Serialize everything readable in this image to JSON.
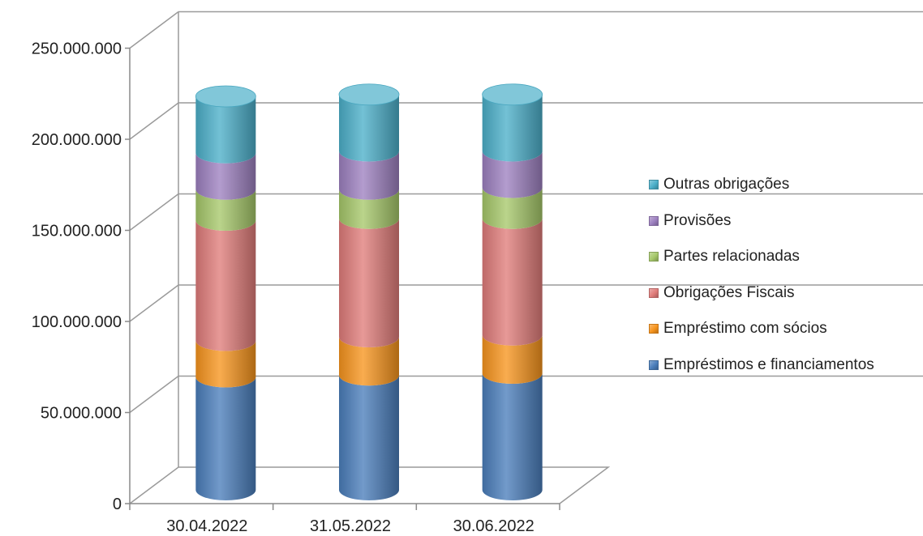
{
  "chart_data": {
    "type": "bar",
    "stacked": true,
    "style": "3d-cylinder",
    "title": "",
    "xlabel": "",
    "ylabel": "",
    "ylim": [
      0,
      250000000
    ],
    "y_ticks": [
      "0",
      "50.000.000",
      "100.000.000",
      "150.000.000",
      "200.000.000",
      "250.000.000"
    ],
    "categories": [
      "30.04.2022",
      "31.05.2022",
      "30.06.2022"
    ],
    "grid": true,
    "legend_position": "right",
    "series": [
      {
        "name": "Empréstimos e financiamentos",
        "color": "#4a7ebb",
        "values": [
          62000000,
          63000000,
          64000000
        ]
      },
      {
        "name": "Empréstimo com sócios",
        "color": "#f7941d",
        "values": [
          20000000,
          21000000,
          21000000
        ]
      },
      {
        "name": "Obrigações Fiscais",
        "color": "#e07c7a",
        "values": [
          66000000,
          65000000,
          64000000
        ]
      },
      {
        "name": "Partes relacionadas",
        "color": "#a6c86a",
        "values": [
          17000000,
          16000000,
          17000000
        ]
      },
      {
        "name": "Provisões",
        "color": "#9d80c0",
        "values": [
          20000000,
          21000000,
          20000000
        ]
      },
      {
        "name": "Outras obrigações",
        "color": "#4bafc9",
        "values": [
          31000000,
          31000000,
          31000000
        ]
      }
    ]
  }
}
